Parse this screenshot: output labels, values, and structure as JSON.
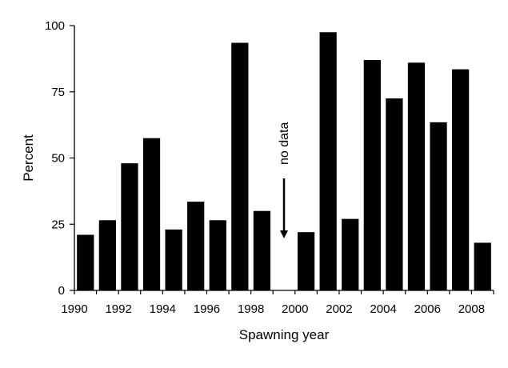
{
  "chart_data": {
    "type": "bar",
    "title": "",
    "xlabel": "Spawning year",
    "ylabel": "Percent",
    "ylim": [
      0,
      100
    ],
    "yticks": [
      0,
      25,
      50,
      75,
      100
    ],
    "xtick_labels": [
      "1990",
      "1992",
      "1994",
      "1996",
      "1998",
      "2000",
      "2002",
      "2004",
      "2006",
      "2008"
    ],
    "categories": [
      1990,
      1991,
      1992,
      1993,
      1994,
      1995,
      1996,
      1997,
      1998,
      1999,
      2000,
      2001,
      2002,
      2003,
      2004,
      2005,
      2006,
      2007,
      2008
    ],
    "values": [
      21,
      26.5,
      48,
      57.5,
      23,
      33.5,
      26.5,
      93.5,
      30,
      null,
      22,
      97.5,
      27,
      87,
      72.5,
      86,
      63.5,
      83.5,
      18
    ],
    "bar_color": "#000000",
    "grid": false,
    "annotation": {
      "text": "no data",
      "category": 1999
    }
  }
}
